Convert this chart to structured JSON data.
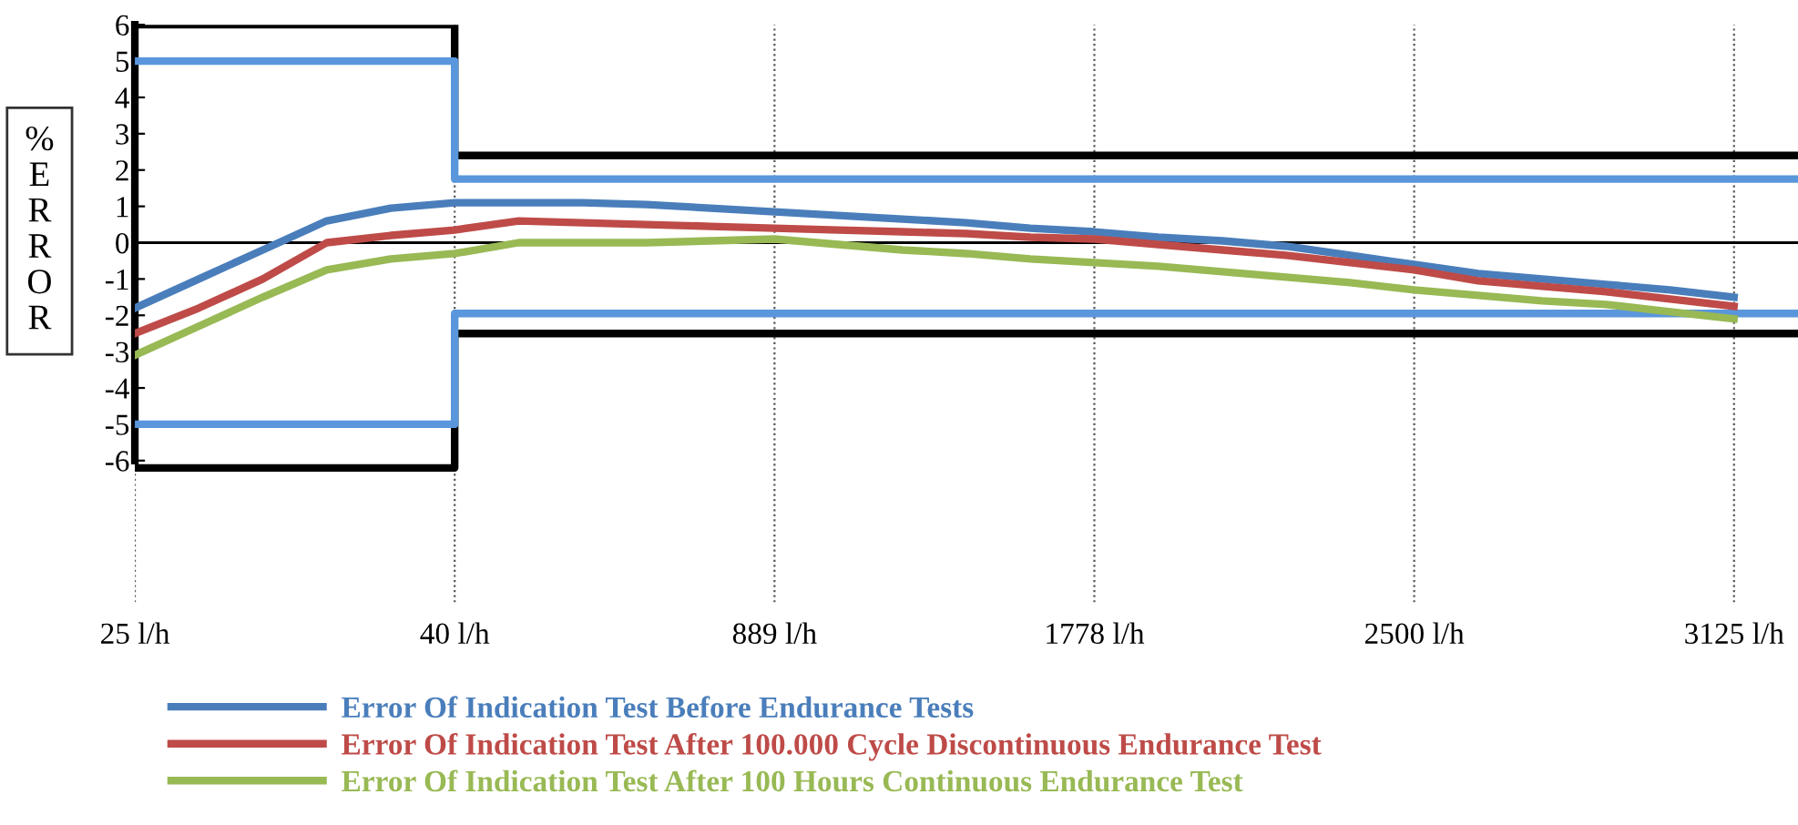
{
  "chart_data": {
    "type": "line",
    "ylabel": "%ERROR",
    "categories": [
      "25 l/h",
      null,
      null,
      null,
      null,
      "40 l/h",
      null,
      null,
      null,
      null,
      "889 l/h",
      null,
      null,
      null,
      null,
      "1778 l/h",
      null,
      null,
      null,
      null,
      "2500 l/h",
      null,
      null,
      null,
      null,
      "3125 l/h",
      null
    ],
    "ylim": [
      -9.9,
      6
    ],
    "yticks": [
      -6,
      -5,
      -4,
      -3,
      -2,
      -1,
      0,
      1,
      2,
      3,
      4,
      5,
      6
    ],
    "grid": "x",
    "legend": "bottom",
    "line_style": "solid",
    "marker": "none",
    "ref_lines": [
      {
        "axis": "y",
        "value": 0,
        "color": "#000000"
      }
    ],
    "series": [
      {
        "type": "step",
        "color": "#000000",
        "values": [
          6,
          6,
          6,
          6,
          6,
          2.4,
          2.4,
          2.4,
          2.4,
          2.4,
          2.4,
          2.4,
          2.4,
          2.4,
          2.4,
          2.4,
          2.4,
          2.4,
          2.4,
          2.4,
          2.4,
          2.4,
          2.4,
          2.4,
          2.4,
          2.4,
          2.4
        ]
      },
      {
        "type": "step",
        "color": "#000000",
        "values": [
          -6.2,
          -6.2,
          -6.2,
          -6.2,
          -6.2,
          -2.5,
          -2.5,
          -2.5,
          -2.5,
          -2.5,
          -2.5,
          -2.5,
          -2.5,
          -2.5,
          -2.5,
          -2.5,
          -2.5,
          -2.5,
          -2.5,
          -2.5,
          -2.5,
          -2.5,
          -2.5,
          -2.5,
          -2.5,
          -2.5,
          -2.5
        ]
      },
      {
        "type": "step",
        "color": "#5a96dc",
        "values": [
          5,
          5,
          5,
          5,
          5,
          1.75,
          1.75,
          1.75,
          1.75,
          1.75,
          1.75,
          1.75,
          1.75,
          1.75,
          1.75,
          1.75,
          1.75,
          1.75,
          1.75,
          1.75,
          1.75,
          1.75,
          1.75,
          1.75,
          1.75,
          1.75,
          1.75
        ]
      },
      {
        "type": "step",
        "color": "#5a96dc",
        "values": [
          -5,
          -5,
          -5,
          -5,
          -5,
          -1.95,
          -1.95,
          -1.95,
          -1.95,
          -1.95,
          -1.95,
          -1.95,
          -1.95,
          -1.95,
          -1.95,
          -1.95,
          -1.95,
          -1.95,
          -1.95,
          -1.95,
          -1.95,
          -1.95,
          -1.95,
          -1.95,
          -1.95,
          -1.95,
          -1.95
        ]
      },
      {
        "name": "Error Of Indication Test Before Endurance Tests",
        "color": "#4a7ebb",
        "values": [
          -1.8,
          -1.0,
          -0.2,
          0.6,
          0.95,
          1.1,
          1.1,
          1.1,
          1.05,
          0.95,
          0.85,
          0.75,
          0.65,
          0.55,
          0.4,
          0.3,
          0.15,
          0.05,
          -0.1,
          -0.35,
          -0.6,
          -0.85,
          -1.0,
          -1.15,
          -1.3,
          -1.5,
          null
        ]
      },
      {
        "name": "Error Of Indication Test After 100.000 Cycle Discontinuous Endurance Test",
        "color": "#be4b48",
        "values": [
          -2.5,
          -1.8,
          -1.0,
          0.0,
          0.2,
          0.35,
          0.6,
          0.55,
          0.5,
          0.45,
          0.4,
          0.35,
          0.3,
          0.25,
          0.15,
          0.1,
          -0.05,
          -0.2,
          -0.35,
          -0.55,
          -0.75,
          -1.05,
          -1.2,
          -1.35,
          -1.55,
          -1.75,
          null
        ]
      },
      {
        "name": "Error Of Indication Test After 100 Hours Continuous Endurance Test",
        "color": "#98b954",
        "values": [
          -3.1,
          -2.3,
          -1.5,
          -0.75,
          -0.45,
          -0.3,
          0,
          0,
          0,
          0.05,
          0.1,
          -0.05,
          -0.2,
          -0.3,
          -0.45,
          -0.55,
          -0.65,
          -0.8,
          -0.95,
          -1.1,
          -1.3,
          -1.45,
          -1.6,
          -1.7,
          -1.9,
          -2.1,
          null
        ]
      }
    ]
  }
}
